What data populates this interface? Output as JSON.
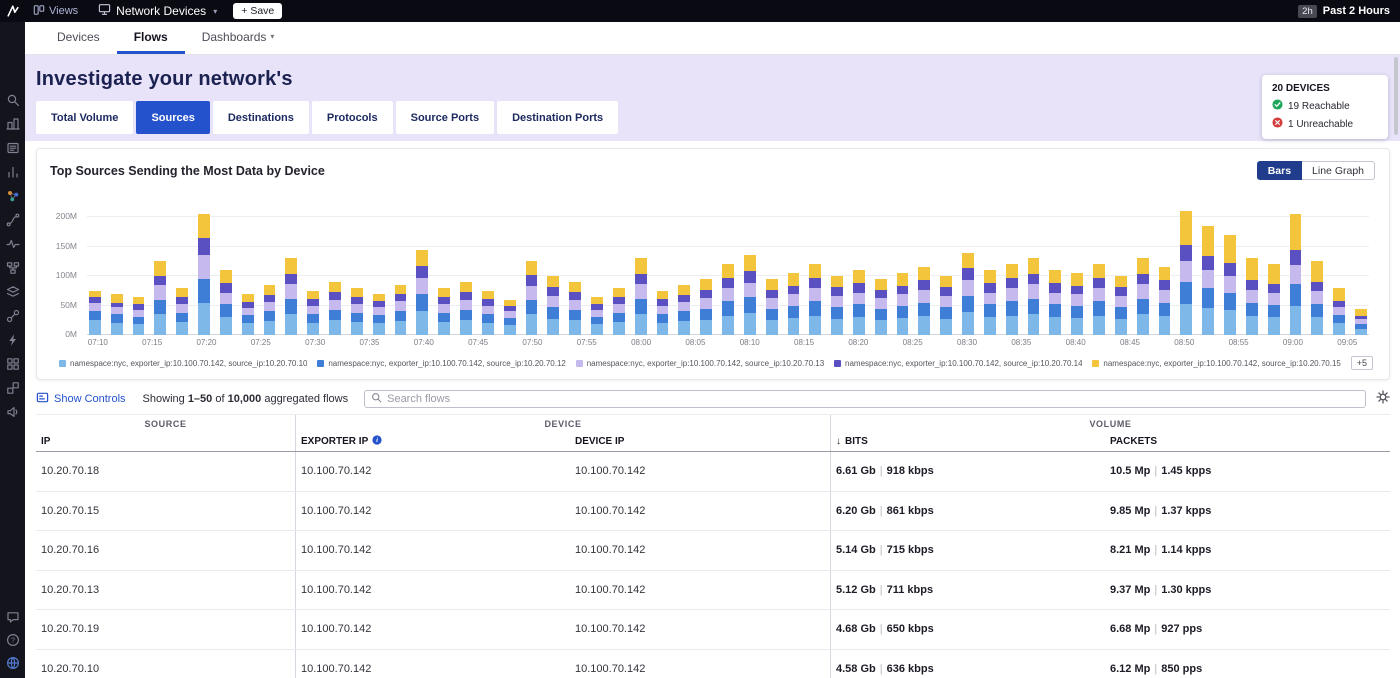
{
  "colors": {
    "accent": "#2452cc",
    "toggle_active": "#1f3d8c",
    "hero_bg": "#e8e3f8",
    "topbar_bg": "#0a0a13",
    "sidebar_bg": "#14141d",
    "reachable_green": "#1ea65a",
    "unreachable_red": "#d43d3d"
  },
  "topbar": {
    "views_label": "Views",
    "title": "Network Devices",
    "save_plus": "+",
    "save_label": "Save",
    "time_badge": "2h",
    "time_label": "Past 2 Hours"
  },
  "nav_tabs": [
    {
      "label": "Devices",
      "active": false,
      "caret": false
    },
    {
      "label": "Flows",
      "active": true,
      "caret": false
    },
    {
      "label": "Dashboards",
      "active": false,
      "caret": true
    }
  ],
  "sidebar": {
    "icons": [
      "search-icon",
      "buildings-icon",
      "news-icon",
      "bar-chart-icon",
      "topology-icon",
      "route-icon",
      "activity-icon",
      "hierarchy-icon",
      "layers-icon",
      "link-icon",
      "bolt-icon",
      "grid-icon",
      "cubes-icon",
      "megaphone-icon"
    ],
    "bottom_icons": [
      "chat-icon",
      "help-icon",
      "globe-icon"
    ]
  },
  "hero": {
    "heading": "Investigate your network's",
    "filters": [
      {
        "label": "Total Volume",
        "active": false
      },
      {
        "label": "Sources",
        "active": true
      },
      {
        "label": "Destinations",
        "active": false
      },
      {
        "label": "Protocols",
        "active": false
      },
      {
        "label": "Source Ports",
        "active": false
      },
      {
        "label": "Destination Ports",
        "active": false
      }
    ],
    "devices_card": {
      "title": "20 DEVICES",
      "reachable": "19 Reachable",
      "unreachable": "1 Unreachable"
    }
  },
  "chart_card": {
    "title": "Top Sources Sending the Most Data by Device",
    "bars_label": "Bars",
    "line_label": "Line Graph",
    "legend_overflow": "+5"
  },
  "chart_data": {
    "type": "bar",
    "stacked": true,
    "title": "Top Sources Sending the Most Data by Device",
    "value_unit": "M",
    "ylim": [
      0,
      220
    ],
    "y_ticks": [
      "0M",
      "50M",
      "100M",
      "150M",
      "200M"
    ],
    "grid": true,
    "legend_position": "bottom",
    "x_interval_minutes": 2,
    "x": [
      "07:10",
      "07:12",
      "07:14",
      "07:16",
      "07:18",
      "07:20",
      "07:22",
      "07:24",
      "07:26",
      "07:28",
      "07:30",
      "07:32",
      "07:34",
      "07:36",
      "07:38",
      "07:40",
      "07:42",
      "07:44",
      "07:46",
      "07:48",
      "07:50",
      "07:52",
      "07:54",
      "07:56",
      "07:58",
      "08:00",
      "08:02",
      "08:04",
      "08:06",
      "08:08",
      "08:10",
      "08:12",
      "08:14",
      "08:16",
      "08:18",
      "08:20",
      "08:22",
      "08:24",
      "08:26",
      "08:28",
      "08:30",
      "08:32",
      "08:34",
      "08:36",
      "08:38",
      "08:40",
      "08:42",
      "08:44",
      "08:46",
      "08:48",
      "08:50",
      "08:52",
      "08:54",
      "08:56",
      "08:58",
      "09:00",
      "09:02",
      "09:04",
      "09:06"
    ],
    "x_tick_labels": [
      "07:10",
      "07:15",
      "07:20",
      "07:25",
      "07:30",
      "07:35",
      "07:40",
      "07:45",
      "07:50",
      "07:55",
      "08:00",
      "08:05",
      "08:10",
      "08:15",
      "08:20",
      "08:25",
      "08:30",
      "08:35",
      "08:40",
      "08:45",
      "08:50",
      "08:55",
      "09:00",
      "09:05"
    ],
    "series": [
      {
        "name": "namespace:nyc, exporter_ip:10.100.70.142, source_ip:10.20.70.10",
        "color": "#7db8e8",
        "values": [
          25,
          20,
          18,
          35,
          22,
          55,
          30,
          20,
          24,
          36,
          21,
          25,
          22,
          20,
          24,
          40,
          22,
          25,
          21,
          17,
          35,
          28,
          25,
          18,
          22,
          36,
          21,
          24,
          26,
          33,
          37,
          26,
          29,
          33,
          28,
          30,
          26,
          29,
          32,
          28,
          39,
          30,
          33,
          36,
          30,
          29,
          33,
          28,
          36,
          32,
          52,
          46,
          42,
          32,
          30,
          50,
          31,
          20,
          11
        ]
      },
      {
        "name": "namespace:nyc, exporter_ip:10.100.70.142, source_ip:10.20.70.12",
        "color": "#3f7ed6",
        "values": [
          15,
          15,
          12,
          25,
          16,
          40,
          22,
          14,
          17,
          26,
          15,
          18,
          16,
          14,
          17,
          29,
          16,
          18,
          15,
          12,
          25,
          20,
          18,
          13,
          16,
          26,
          15,
          17,
          19,
          24,
          27,
          19,
          21,
          24,
          20,
          22,
          19,
          21,
          23,
          20,
          28,
          22,
          24,
          26,
          22,
          21,
          24,
          20,
          26,
          23,
          38,
          33,
          30,
          23,
          21,
          36,
          22,
          14,
          8
        ]
      },
      {
        "name": "namespace:nyc, exporter_ip:10.100.70.142, source_ip:10.20.70.13",
        "color": "#c6b9ee",
        "values": [
          15,
          12,
          12,
          25,
          14,
          40,
          20,
          12,
          15,
          24,
          14,
          17,
          15,
          13,
          16,
          27,
          15,
          17,
          14,
          11,
          23,
          18,
          17,
          12,
          15,
          24,
          14,
          15,
          18,
          22,
          25,
          18,
          19,
          22,
          18,
          20,
          18,
          19,
          21,
          18,
          26,
          20,
          22,
          24,
          20,
          19,
          22,
          18,
          24,
          21,
          35,
          31,
          28,
          21,
          20,
          33,
          21,
          13,
          8
        ]
      },
      {
        "name": "namespace:nyc, exporter_ip:10.100.70.142, source_ip:10.20.70.14",
        "color": "#5a50c2",
        "values": [
          10,
          8,
          10,
          15,
          12,
          30,
          16,
          10,
          12,
          18,
          11,
          13,
          12,
          10,
          12,
          21,
          12,
          13,
          11,
          9,
          18,
          15,
          13,
          10,
          12,
          18,
          11,
          12,
          14,
          17,
          20,
          14,
          15,
          17,
          15,
          16,
          14,
          15,
          17,
          15,
          20,
          16,
          17,
          18,
          16,
          15,
          17,
          15,
          18,
          17,
          28,
          24,
          22,
          17,
          16,
          26,
          16,
          10,
          6
        ]
      },
      {
        "name": "namespace:nyc, exporter_ip:10.100.70.142, source_ip:10.20.70.15",
        "color": "#f2c53d",
        "values": [
          10,
          15,
          13,
          25,
          16,
          40,
          22,
          14,
          17,
          26,
          14,
          17,
          15,
          13,
          16,
          28,
          15,
          17,
          14,
          11,
          24,
          19,
          17,
          12,
          15,
          26,
          14,
          17,
          18,
          24,
          26,
          18,
          21,
          24,
          19,
          22,
          18,
          21,
          22,
          19,
          27,
          22,
          24,
          26,
          22,
          21,
          24,
          19,
          26,
          22,
          57,
          51,
          48,
          37,
          33,
          60,
          35,
          23,
          12
        ]
      }
    ]
  },
  "controls": {
    "show_controls": "Show Controls",
    "showing": {
      "prefix": "Showing",
      "range": "1–50",
      "of": "of",
      "total": "10,000",
      "suffix": "aggregated flows"
    },
    "search_placeholder": "Search flows"
  },
  "table": {
    "groups": [
      "SOURCE",
      "DEVICE",
      "VOLUME"
    ],
    "columns": {
      "ip": "IP",
      "exporter_ip": "EXPORTER IP",
      "device_ip": "DEVICE IP",
      "bits": "BITS",
      "packets": "PACKETS"
    },
    "rows": [
      {
        "ip": "10.20.70.18",
        "exporter_ip": "10.100.70.142",
        "device_ip": "10.100.70.142",
        "bits": "6.61 Gb",
        "bits_rate": "918 kbps",
        "packets": "10.5 Mp",
        "packets_rate": "1.45 kpps"
      },
      {
        "ip": "10.20.70.15",
        "exporter_ip": "10.100.70.142",
        "device_ip": "10.100.70.142",
        "bits": "6.20 Gb",
        "bits_rate": "861 kbps",
        "packets": "9.85 Mp",
        "packets_rate": "1.37 kpps"
      },
      {
        "ip": "10.20.70.16",
        "exporter_ip": "10.100.70.142",
        "device_ip": "10.100.70.142",
        "bits": "5.14 Gb",
        "bits_rate": "715 kbps",
        "packets": "8.21 Mp",
        "packets_rate": "1.14 kpps"
      },
      {
        "ip": "10.20.70.13",
        "exporter_ip": "10.100.70.142",
        "device_ip": "10.100.70.142",
        "bits": "5.12 Gb",
        "bits_rate": "711 kbps",
        "packets": "9.37 Mp",
        "packets_rate": "1.30 kpps"
      },
      {
        "ip": "10.20.70.19",
        "exporter_ip": "10.100.70.142",
        "device_ip": "10.100.70.142",
        "bits": "4.68 Gb",
        "bits_rate": "650 kbps",
        "packets": "6.68 Mp",
        "packets_rate": "927 pps"
      },
      {
        "ip": "10.20.70.10",
        "exporter_ip": "10.100.70.142",
        "device_ip": "10.100.70.142",
        "bits": "4.58 Gb",
        "bits_rate": "636 kbps",
        "packets": "6.12 Mp",
        "packets_rate": "850 pps"
      }
    ]
  }
}
